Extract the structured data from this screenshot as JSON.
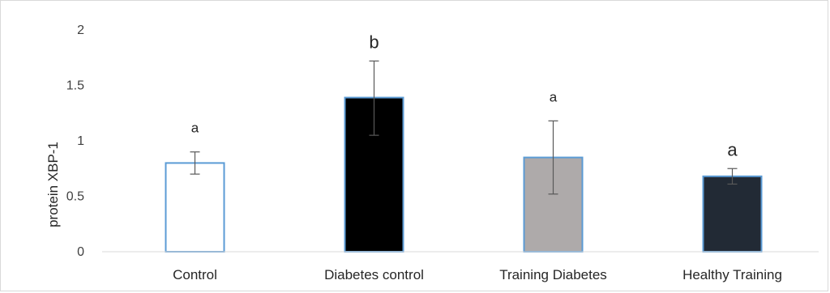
{
  "chart_data": {
    "type": "bar",
    "title": "",
    "xlabel": "",
    "ylabel": "protein XBP-1",
    "ylim": [
      0,
      2
    ],
    "yticks": [
      0,
      0.5,
      1,
      1.5,
      2
    ],
    "ytick_labels": [
      "0",
      "0.5",
      "1",
      "1.5",
      "2"
    ],
    "grid": false,
    "legend": "none",
    "categories": [
      "Control",
      "Diabetes control",
      "Training Diabetes",
      "Healthy Training"
    ],
    "values": [
      0.8,
      1.39,
      0.85,
      0.68
    ],
    "error_lower": [
      0.7,
      1.05,
      0.52,
      0.61
    ],
    "error_upper": [
      0.9,
      1.72,
      1.18,
      0.75
    ],
    "significance_labels": [
      "a",
      "b",
      "a",
      "a"
    ],
    "bar_fill_colors": [
      "#ffffff",
      "#000000",
      "#aeaaaa",
      "#222a35"
    ],
    "bar_stroke_color": "#5b9bd5",
    "error_bar_color": "#595959"
  }
}
